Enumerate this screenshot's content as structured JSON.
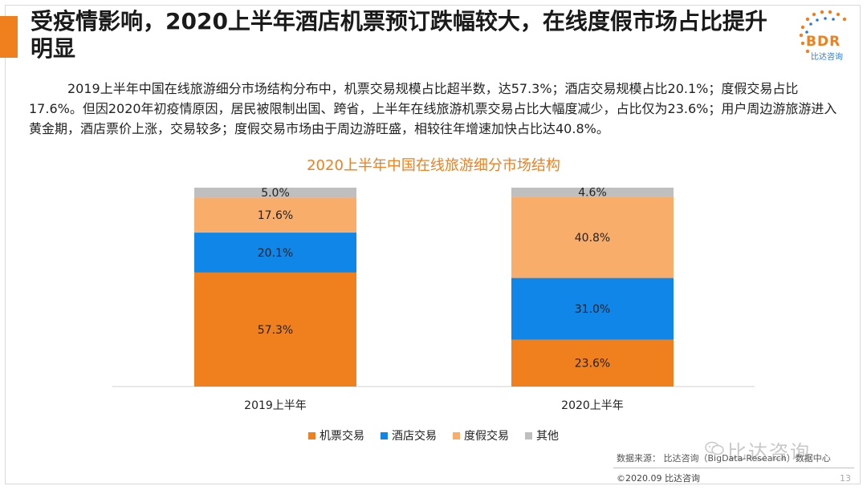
{
  "header": {
    "title": "受疫情影响，2020上半年酒店机票预订跌幅较大，在线度假市场占比提升明显",
    "logo_text": "BDR",
    "logo_sub": "比达咨询"
  },
  "intro_text": "2019上半年中国在线旅游细分市场结构分布中，机票交易规模占比超半数，达57.3%；酒店交易规模占比20.1%；度假交易占比17.6%。但因2020年初疫情原因，居民被限制出国、跨省，上半年在线旅游机票交易占比大幅度减少，占比仅为23.6%；用户周边游旅游进入黄金期，酒店票价上涨，交易较多；度假交易市场由于周边游旺盛，相较往年增速加快占比达40.8%。",
  "chart_data": {
    "type": "bar",
    "stacked": true,
    "title": "2020上半年中国在线旅游细分市场结构",
    "categories": [
      "2019上半年",
      "2020上半年"
    ],
    "ylim": [
      0,
      100
    ],
    "series": [
      {
        "name": "机票交易",
        "color": "#f07f1e",
        "values": [
          57.3,
          23.6
        ],
        "labels": [
          "57.3%",
          "23.6%"
        ]
      },
      {
        "name": "酒店交易",
        "color": "#0f86e8",
        "values": [
          20.1,
          31.0
        ],
        "labels": [
          "20.1%",
          "31.0%"
        ]
      },
      {
        "name": "度假交易",
        "color": "#f8ad6a",
        "values": [
          17.6,
          40.8
        ],
        "labels": [
          "17.6%",
          "40.8%"
        ]
      },
      {
        "name": "其他",
        "color": "#bfbfbf",
        "values": [
          5.0,
          4.6
        ],
        "labels": [
          "5.0%",
          "4.6%"
        ]
      }
    ],
    "legend_position": "bottom",
    "grid": false
  },
  "source_text": "数据来源：  比达咨询（BigData-Research）数据中心",
  "watermark_text": "比达咨询",
  "footer_text": "©2020.09 比达咨询",
  "page_number": "13"
}
